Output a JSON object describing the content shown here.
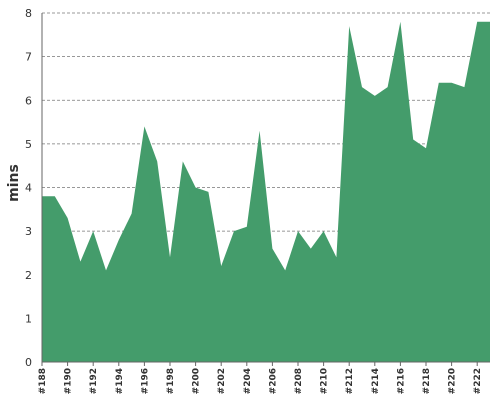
{
  "chart_data": {
    "type": "area",
    "title": "",
    "xlabel": "",
    "ylabel": "mins",
    "ylim": [
      0,
      8
    ],
    "yticks": [
      0,
      1,
      2,
      3,
      4,
      5,
      6,
      7,
      8
    ],
    "grid": true,
    "legend": "none",
    "x_tick_labels": [
      "#188",
      "#190",
      "#192",
      "#194",
      "#196",
      "#198",
      "#200",
      "#202",
      "#204",
      "#206",
      "#208",
      "#210",
      "#212",
      "#214",
      "#216",
      "#218",
      "#220",
      "#222"
    ],
    "series": [
      {
        "color": "#449c6b",
        "x": [
          188,
          189,
          190,
          191,
          192,
          193,
          194,
          195,
          196,
          197,
          198,
          199,
          200,
          201,
          202,
          203,
          204,
          205,
          206,
          207,
          208,
          209,
          210,
          211,
          212,
          213,
          214,
          215,
          216,
          217,
          218,
          219,
          220,
          221,
          222,
          223
        ],
        "values": [
          3.8,
          3.8,
          3.3,
          2.3,
          3.0,
          2.1,
          2.8,
          3.4,
          5.4,
          4.6,
          2.4,
          4.6,
          4.0,
          3.9,
          2.2,
          3.0,
          3.1,
          5.3,
          2.6,
          2.1,
          3.0,
          2.6,
          3.0,
          2.4,
          7.7,
          6.3,
          6.1,
          6.3,
          7.8,
          5.1,
          4.9,
          6.4,
          6.4,
          6.3,
          7.8,
          7.8
        ]
      }
    ]
  }
}
